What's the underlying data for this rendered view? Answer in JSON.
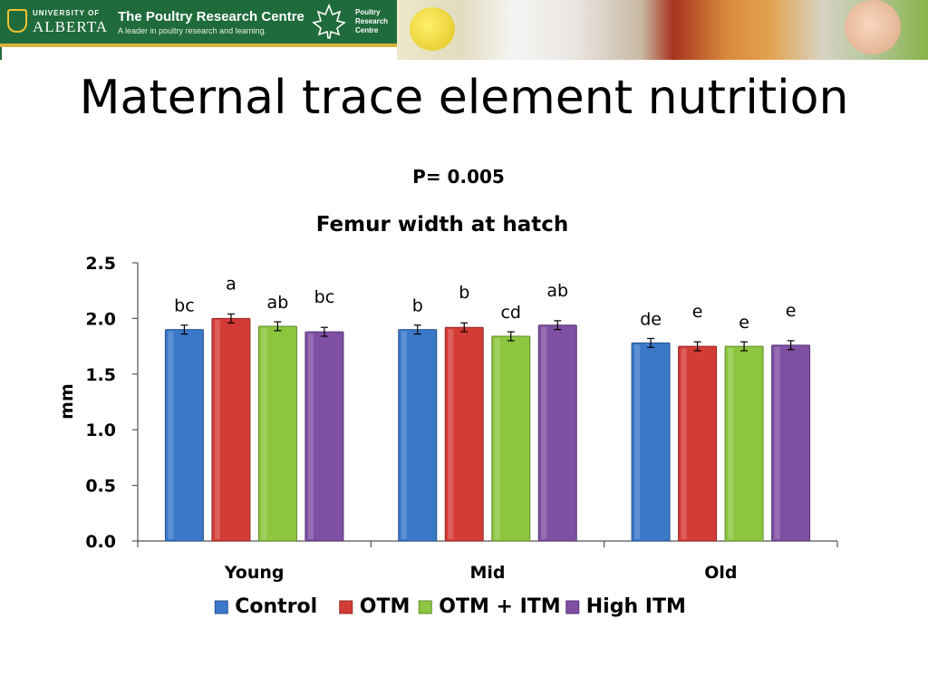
{
  "banner": {
    "university_small": "UNIVERSITY OF",
    "university_big": "ALBERTA",
    "centre_title": "The Poultry Research Centre",
    "centre_tagline": "A leader in poultry research and learning.",
    "logo_text": "Poultry Research Centre"
  },
  "slide": {
    "title": "Maternal trace element nutrition"
  },
  "chart_data": {
    "type": "bar",
    "annotation": "P= 0.005",
    "title": "Femur width at hatch",
    "xlabel": "",
    "ylabel": "mm",
    "ylim": [
      0,
      2.5
    ],
    "yticks": [
      "0.0",
      "0.5",
      "1.0",
      "1.5",
      "2.0",
      "2.5"
    ],
    "categories": [
      "Young",
      "Mid",
      "Old"
    ],
    "legend_position": "bottom",
    "series": [
      {
        "name": "Control",
        "color": "#3a78c8",
        "values": [
          1.9,
          1.9,
          1.78
        ],
        "errors": [
          0.04,
          0.04,
          0.04
        ],
        "letters": [
          "bc",
          "b",
          "de"
        ]
      },
      {
        "name": "OTM",
        "color": "#d33b36",
        "values": [
          2.0,
          1.92,
          1.75
        ],
        "errors": [
          0.04,
          0.04,
          0.04
        ],
        "letters": [
          "a",
          "b",
          "e"
        ]
      },
      {
        "name": "OTM + ITM",
        "color": "#8cc63f",
        "values": [
          1.93,
          1.84,
          1.75
        ],
        "errors": [
          0.04,
          0.04,
          0.04
        ],
        "letters": [
          "ab",
          "cd",
          "e"
        ]
      },
      {
        "name": "High ITM",
        "color": "#7e4fa3",
        "values": [
          1.88,
          1.94,
          1.76
        ],
        "errors": [
          0.04,
          0.04,
          0.04
        ],
        "letters": [
          "bc",
          "ab",
          "e"
        ]
      }
    ]
  }
}
